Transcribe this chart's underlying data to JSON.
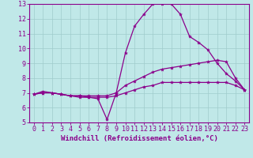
{
  "xlabel": "Windchill (Refroidissement éolien,°C)",
  "xlim": [
    -0.5,
    23.5
  ],
  "ylim": [
    5,
    13
  ],
  "xticks": [
    0,
    1,
    2,
    3,
    4,
    5,
    6,
    7,
    8,
    9,
    10,
    11,
    12,
    13,
    14,
    15,
    16,
    17,
    18,
    19,
    20,
    21,
    22,
    23
  ],
  "yticks": [
    5,
    6,
    7,
    8,
    9,
    10,
    11,
    12,
    13
  ],
  "bg_color": "#c0e8e8",
  "line_color": "#8b008b",
  "grid_color": "#a0cccc",
  "line1_y": [
    6.9,
    7.1,
    7.0,
    6.9,
    6.8,
    6.7,
    6.7,
    6.6,
    5.2,
    7.0,
    9.7,
    11.5,
    12.3,
    13.0,
    13.0,
    13.0,
    12.3,
    10.8,
    10.4,
    9.9,
    9.0,
    8.3,
    7.8,
    7.2
  ],
  "line2_y": [
    6.9,
    7.0,
    7.0,
    6.9,
    6.8,
    6.8,
    6.8,
    6.8,
    6.8,
    7.0,
    7.5,
    7.8,
    8.1,
    8.4,
    8.6,
    8.7,
    8.8,
    8.9,
    9.0,
    9.1,
    9.2,
    9.1,
    8.0,
    7.2
  ],
  "line3_y": [
    6.9,
    7.0,
    7.0,
    6.9,
    6.8,
    6.8,
    6.7,
    6.7,
    6.7,
    6.8,
    7.0,
    7.2,
    7.4,
    7.5,
    7.7,
    7.7,
    7.7,
    7.7,
    7.7,
    7.7,
    7.7,
    7.7,
    7.5,
    7.2
  ],
  "xlabel_fontsize": 6.5,
  "tick_fontsize": 6.0,
  "ylabel_fontsize": 6.0,
  "line_width": 0.9,
  "marker_size": 3.0
}
